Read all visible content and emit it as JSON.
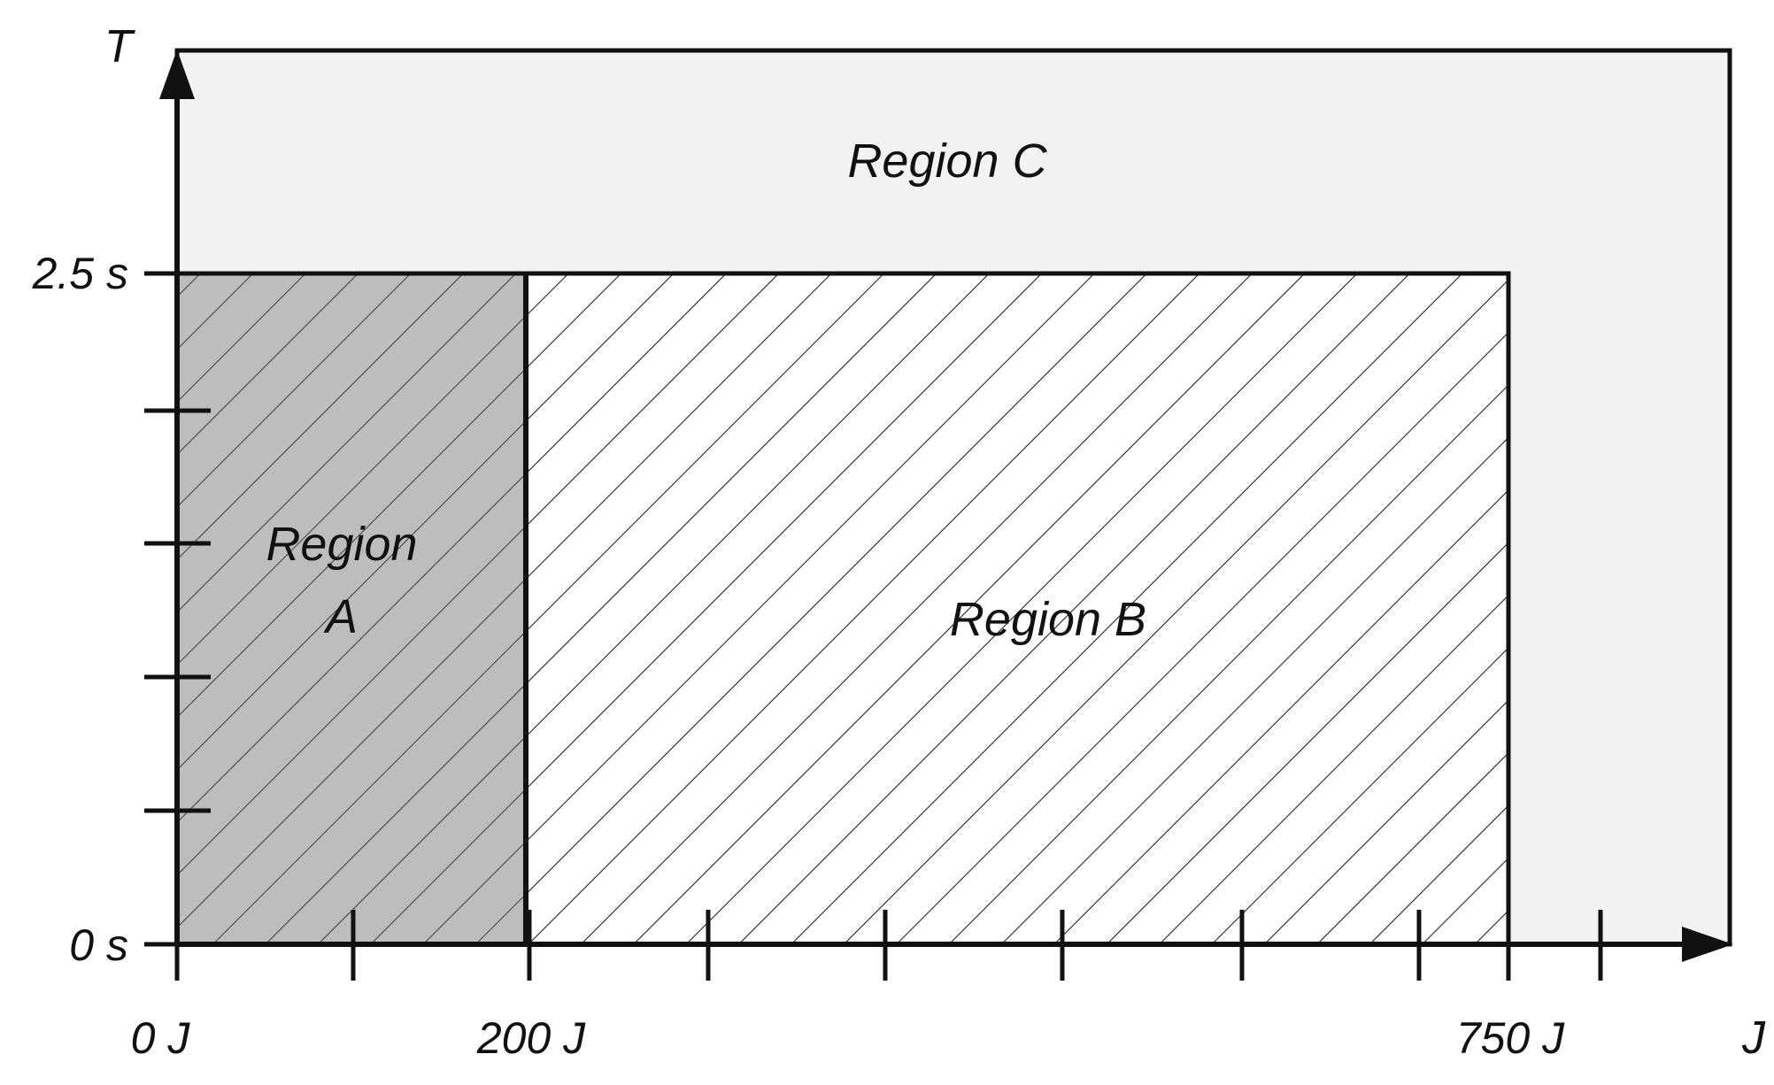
{
  "diagram": {
    "axes": {
      "y_title": "T",
      "x_title": "J"
    },
    "y_ticks": {
      "top": "2.5 s",
      "zero": "0 s"
    },
    "x_ticks": {
      "zero": "0 J",
      "mid": "200 J",
      "high": "750 J"
    },
    "regions": {
      "a_line1": "Region",
      "a_line2": "A",
      "b": "Region B",
      "c": "Region C"
    },
    "colors": {
      "region_a_fill": "#bdbdbd",
      "region_b_fill": "#ffffff",
      "region_c_fill": "#f3f3f3",
      "hatch": "#222222",
      "axis": "#111111"
    }
  }
}
